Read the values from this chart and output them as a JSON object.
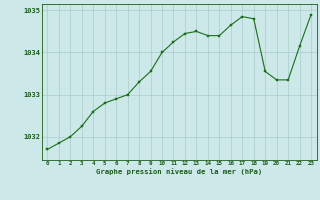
{
  "x": [
    0,
    1,
    2,
    3,
    4,
    5,
    6,
    7,
    8,
    9,
    10,
    11,
    12,
    13,
    14,
    15,
    16,
    17,
    18,
    19,
    20,
    21,
    22,
    23
  ],
  "y": [
    1031.7,
    1031.85,
    1032.0,
    1032.25,
    1032.6,
    1032.8,
    1032.9,
    1033.0,
    1033.3,
    1033.55,
    1034.0,
    1034.25,
    1034.45,
    1034.5,
    1034.4,
    1034.4,
    1034.65,
    1034.85,
    1034.8,
    1033.55,
    1033.35,
    1033.35,
    1034.15,
    1034.9
  ],
  "line_color": "#1a6e1a",
  "marker_color": "#1a6e1a",
  "bg_color": "#cce8e8",
  "grid_color": "#aacccc",
  "axis_label_color": "#1a5c1a",
  "tick_color": "#1a5c1a",
  "title": "Graphe pression niveau de la mer (hPa)",
  "ylabel_ticks": [
    1032,
    1033,
    1034,
    1035
  ],
  "ylim": [
    1031.45,
    1035.15
  ],
  "xlim": [
    -0.5,
    23.5
  ]
}
